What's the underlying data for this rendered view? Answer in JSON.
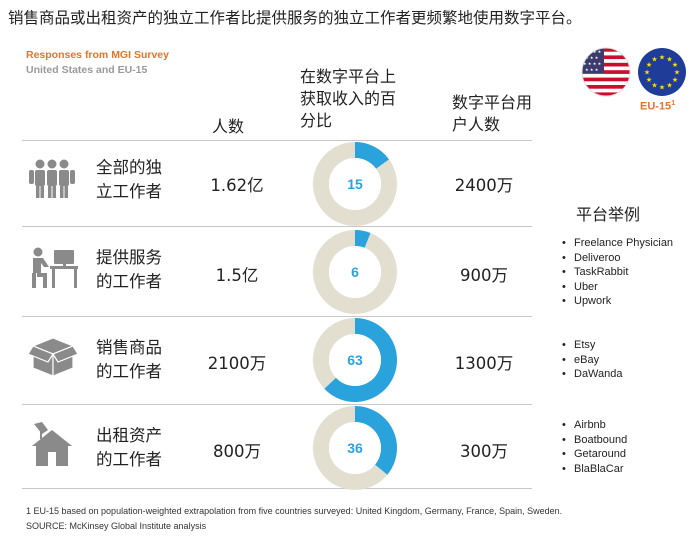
{
  "title": "销售商品或出租资产的独立工作者比提供服务的独立工作者更频繁地使用数字平台。",
  "source": {
    "line1": "Responses from MGI Survey",
    "line2": "United States and EU-15"
  },
  "flags": {
    "eu_label": "EU-15",
    "eu_sup": "1"
  },
  "headers": {
    "people": "人数",
    "income_l1": "在数字平台上",
    "income_l2": "获取收入的百",
    "income_l3": "分比",
    "users_l1": "数字平台用",
    "users_l2": "户人数",
    "platforms": "平台举例"
  },
  "rows": [
    {
      "cat_l1": "全部的独",
      "cat_l2": "立工作者",
      "people": "1.62亿",
      "pct_label": "15",
      "users": "2400万",
      "icon": "people-group-icon",
      "platforms": []
    },
    {
      "cat_l1": "提供服务",
      "cat_l2": "的工作者",
      "people": "1.5亿",
      "pct_label": "6",
      "users": "900万",
      "icon": "desk-worker-icon",
      "platforms": [
        "Freelance Physician",
        "Deliveroo",
        "TaskRabbit",
        "Uber",
        "Upwork"
      ]
    },
    {
      "cat_l1": "销售商品",
      "cat_l2": "的工作者",
      "people": "2100万",
      "pct_label": "63",
      "users": "1300万",
      "icon": "box-icon",
      "platforms": [
        "Etsy",
        "eBay",
        "DaWanda"
      ]
    },
    {
      "cat_l1": "出租资产",
      "cat_l2": "的工作者",
      "people": "800万",
      "pct_label": "36",
      "users": "300万",
      "icon": "house-key-icon",
      "platforms": [
        "Airbnb",
        "Boatbound",
        "Getaround",
        "BlaBlaCar"
      ]
    }
  ],
  "chart_data": {
    "type": "pie",
    "categories": [
      "全部的独立工作者",
      "提供服务的工作者",
      "销售商品的工作者",
      "出租资产的工作者"
    ],
    "values": [
      15,
      6,
      63,
      36
    ],
    "max": 100
  },
  "footnote": "1 EU-15 based on population-weighted extrapolation from five countries surveyed: United Kingdom, Germany, France, Spain, Sweden.",
  "source_note": "SOURCE: McKinsey Global Institute analysis",
  "colors": {
    "accent_blue": "#2aa3dd",
    "ring_grey": "#e3dfd0",
    "icon_grey": "#8a8a8a",
    "orange": "#e0762b"
  }
}
